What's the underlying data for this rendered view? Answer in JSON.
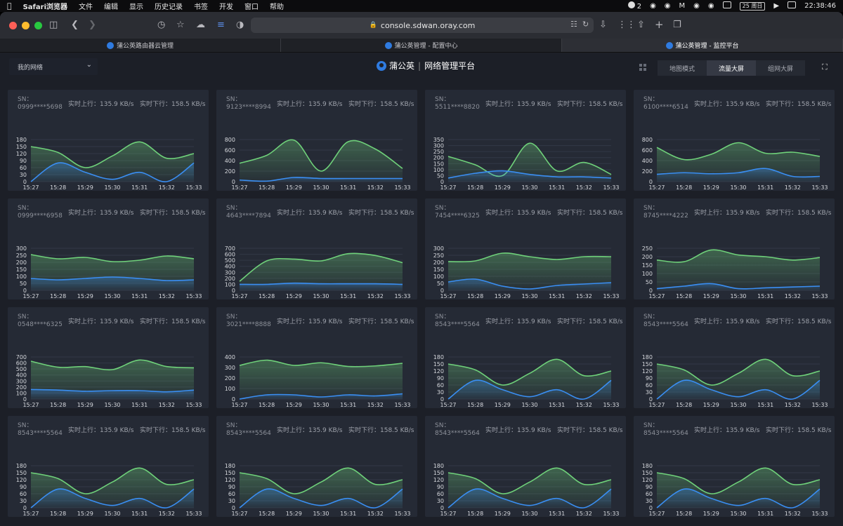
{
  "menubar": {
    "apple": "",
    "app_name": "Safari浏览器",
    "items": [
      "文件",
      "编辑",
      "显示",
      "历史记录",
      "书签",
      "开发",
      "窗口",
      "帮助"
    ],
    "badge": "2",
    "date": "25 周日",
    "time": "22:38:46"
  },
  "browser": {
    "url": "console.sdwan.oray.com",
    "tabs": [
      "蒲公英路由器云管理",
      "蒲公英管理 - 配置中心",
      "蒲公英管理 - 监控平台"
    ],
    "active_tab": 2
  },
  "header": {
    "network_select": "我的网络",
    "brand": "蒲公英",
    "brand_sub": "网络管理平台",
    "modes": [
      "地图模式",
      "流量大屏",
      "组网大屏"
    ],
    "active_mode": 1
  },
  "labels": {
    "sn": "SN：",
    "up": "实时上行：135.9 KB/s",
    "down": "实时下行：158.5 KB/s"
  },
  "chart_data": [
    {
      "sn": "0999****5698",
      "type": "area",
      "x": [
        "15:27",
        "15:28",
        "15:29",
        "15:30",
        "15:31",
        "15:32",
        "15:33"
      ],
      "ticks": [
        0,
        30,
        60,
        90,
        120,
        150,
        180
      ],
      "ylim": [
        0,
        180
      ],
      "series": [
        {
          "values": [
            150,
            125,
            60,
            110,
            170,
            100,
            120
          ]
        },
        {
          "values": [
            0,
            80,
            40,
            10,
            40,
            0,
            80
          ]
        }
      ]
    },
    {
      "sn": "9123****8994",
      "type": "area",
      "x": [
        "15:27",
        "15:28",
        "15:29",
        "15:30",
        "15:31",
        "15:32",
        "15:33"
      ],
      "ticks": [
        0,
        200,
        400,
        600,
        800
      ],
      "ylim": [
        0,
        800
      ],
      "series": [
        {
          "values": [
            350,
            500,
            790,
            200,
            760,
            620,
            250
          ]
        },
        {
          "values": [
            30,
            10,
            80,
            60,
            60,
            60,
            60
          ]
        }
      ]
    },
    {
      "sn": "5511****8820",
      "type": "area",
      "x": [
        "15:27",
        "15:28",
        "15:29",
        "15:30",
        "15:31",
        "15:32",
        "15:33"
      ],
      "ticks": [
        0,
        50,
        100,
        150,
        200,
        250,
        300,
        350
      ],
      "ylim": [
        0,
        350
      ],
      "series": [
        {
          "values": [
            210,
            140,
            50,
            320,
            90,
            160,
            60
          ]
        },
        {
          "values": [
            30,
            70,
            90,
            60,
            40,
            40,
            30
          ]
        }
      ]
    },
    {
      "sn": "6100****6514",
      "type": "area",
      "x": [
        "15:27",
        "15:28",
        "15:29",
        "15:30",
        "15:31",
        "15:32",
        "15:33"
      ],
      "ticks": [
        0,
        200,
        400,
        600,
        800
      ],
      "ylim": [
        0,
        800
      ],
      "series": [
        {
          "values": [
            650,
            420,
            520,
            740,
            540,
            560,
            480
          ]
        },
        {
          "values": [
            140,
            170,
            150,
            170,
            250,
            100,
            100
          ]
        }
      ]
    },
    {
      "sn": "0999****6958",
      "type": "area",
      "x": [
        "15:27",
        "15:28",
        "15:29",
        "15:30",
        "15:31",
        "15:32",
        "15:33"
      ],
      "ticks": [
        0,
        50,
        100,
        150,
        200,
        250,
        300
      ],
      "ylim": [
        0,
        300
      ],
      "series": [
        {
          "values": [
            255,
            225,
            235,
            205,
            215,
            245,
            225
          ]
        },
        {
          "values": [
            85,
            75,
            85,
            95,
            85,
            70,
            75
          ]
        }
      ]
    },
    {
      "sn": "4643****7894",
      "type": "area",
      "x": [
        "15:27",
        "15:28",
        "15:29",
        "15:30",
        "15:31",
        "15:32",
        "15:33"
      ],
      "ticks": [
        0,
        100,
        200,
        300,
        400,
        500,
        600,
        700
      ],
      "ylim": [
        0,
        700
      ],
      "series": [
        {
          "values": [
            150,
            490,
            520,
            490,
            610,
            580,
            460
          ]
        },
        {
          "values": [
            100,
            100,
            120,
            110,
            110,
            110,
            100
          ]
        }
      ]
    },
    {
      "sn": "7454****6325",
      "type": "area",
      "x": [
        "15:27",
        "15:28",
        "15:29",
        "15:30",
        "15:31",
        "15:32",
        "15:33"
      ],
      "ticks": [
        0,
        50,
        100,
        150,
        200,
        250,
        300
      ],
      "ylim": [
        0,
        300
      ],
      "series": [
        {
          "values": [
            205,
            210,
            265,
            240,
            220,
            240,
            240
          ]
        },
        {
          "values": [
            60,
            80,
            30,
            10,
            35,
            45,
            55
          ]
        }
      ]
    },
    {
      "sn": "8745****4222",
      "type": "area",
      "x": [
        "15:27",
        "15:28",
        "15:29",
        "15:30",
        "15:31",
        "15:32",
        "15:33"
      ],
      "ticks": [
        0,
        50,
        100,
        150,
        200,
        250
      ],
      "ylim": [
        0,
        250
      ],
      "series": [
        {
          "values": [
            180,
            170,
            240,
            210,
            200,
            180,
            195
          ]
        },
        {
          "values": [
            10,
            25,
            40,
            10,
            15,
            20,
            25
          ]
        }
      ]
    },
    {
      "sn": "0548****6325",
      "type": "area",
      "x": [
        "15:27",
        "15:28",
        "15:29",
        "15:30",
        "15:31",
        "15:32",
        "15:33"
      ],
      "ticks": [
        0,
        100,
        200,
        300,
        400,
        500,
        600,
        700
      ],
      "ylim": [
        0,
        700
      ],
      "series": [
        {
          "values": [
            630,
            530,
            540,
            490,
            650,
            540,
            520
          ]
        },
        {
          "values": [
            160,
            150,
            130,
            140,
            140,
            120,
            150
          ]
        }
      ]
    },
    {
      "sn": "3021****8888",
      "type": "area",
      "x": [
        "15:27",
        "15:28",
        "15:29",
        "15:30",
        "15:31",
        "15:32",
        "15:33"
      ],
      "ticks": [
        0,
        100,
        200,
        300,
        400
      ],
      "ylim": [
        0,
        400
      ],
      "series": [
        {
          "values": [
            320,
            370,
            320,
            345,
            310,
            315,
            340
          ]
        },
        {
          "values": [
            0,
            40,
            40,
            20,
            40,
            30,
            50
          ]
        }
      ]
    },
    {
      "sn": "8543****5564",
      "type": "area",
      "x": [
        "15:27",
        "15:28",
        "15:29",
        "15:30",
        "15:31",
        "15:32",
        "15:33"
      ],
      "ticks": [
        0,
        30,
        60,
        90,
        120,
        150,
        180
      ],
      "ylim": [
        0,
        180
      ],
      "series": [
        {
          "values": [
            150,
            125,
            60,
            110,
            170,
            100,
            120
          ]
        },
        {
          "values": [
            0,
            80,
            40,
            10,
            40,
            0,
            80
          ]
        }
      ]
    },
    {
      "sn": "8543****5564",
      "type": "area",
      "x": [
        "15:27",
        "15:28",
        "15:29",
        "15:30",
        "15:31",
        "15:32",
        "15:33"
      ],
      "ticks": [
        0,
        30,
        60,
        90,
        120,
        150,
        180
      ],
      "ylim": [
        0,
        180
      ],
      "series": [
        {
          "values": [
            150,
            125,
            60,
            110,
            170,
            100,
            120
          ]
        },
        {
          "values": [
            0,
            80,
            40,
            10,
            40,
            0,
            80
          ]
        }
      ]
    },
    {
      "sn": "8543****5564",
      "type": "area",
      "x": [
        "15:27",
        "15:28",
        "15:29",
        "15:30",
        "15:31",
        "15:32",
        "15:33"
      ],
      "ticks": [
        0,
        30,
        60,
        90,
        120,
        150,
        180
      ],
      "ylim": [
        0,
        180
      ],
      "series": [
        {
          "values": [
            150,
            125,
            60,
            110,
            170,
            100,
            120
          ]
        },
        {
          "values": [
            0,
            80,
            40,
            10,
            40,
            0,
            80
          ]
        }
      ]
    },
    {
      "sn": "8543****5564",
      "type": "area",
      "x": [
        "15:27",
        "15:28",
        "15:29",
        "15:30",
        "15:31",
        "15:32",
        "15:33"
      ],
      "ticks": [
        0,
        30,
        60,
        90,
        120,
        150,
        180
      ],
      "ylim": [
        0,
        180
      ],
      "series": [
        {
          "values": [
            150,
            125,
            60,
            110,
            170,
            100,
            120
          ]
        },
        {
          "values": [
            0,
            80,
            40,
            10,
            40,
            0,
            80
          ]
        }
      ]
    },
    {
      "sn": "8543****5564",
      "type": "area",
      "x": [
        "15:27",
        "15:28",
        "15:29",
        "15:30",
        "15:31",
        "15:32",
        "15:33"
      ],
      "ticks": [
        0,
        30,
        60,
        90,
        120,
        150,
        180
      ],
      "ylim": [
        0,
        180
      ],
      "series": [
        {
          "values": [
            150,
            125,
            60,
            110,
            170,
            100,
            120
          ]
        },
        {
          "values": [
            0,
            80,
            40,
            10,
            40,
            0,
            80
          ]
        }
      ]
    },
    {
      "sn": "8543****5564",
      "type": "area",
      "x": [
        "15:27",
        "15:28",
        "15:29",
        "15:30",
        "15:31",
        "15:32",
        "15:33"
      ],
      "ticks": [
        0,
        30,
        60,
        90,
        120,
        150,
        180
      ],
      "ylim": [
        0,
        180
      ],
      "series": [
        {
          "values": [
            150,
            125,
            60,
            110,
            170,
            100,
            120
          ]
        },
        {
          "values": [
            0,
            80,
            40,
            10,
            40,
            0,
            80
          ]
        }
      ]
    }
  ],
  "colors": {
    "upload_line": "#6fd17a",
    "download_line": "#3a8ef2",
    "card_bg": "#252a35",
    "page_bg": "#1c1f27"
  }
}
